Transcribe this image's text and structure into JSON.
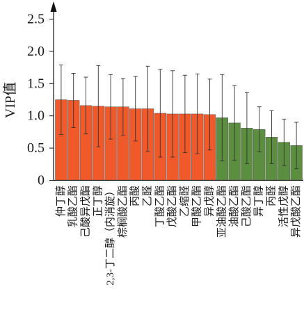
{
  "chart_data": {
    "type": "bar",
    "title": "",
    "xlabel": "",
    "ylabel": "VIP值",
    "ylim": [
      0,
      2.5
    ],
    "yticks": [
      "0",
      "0.5",
      "1.0",
      "1.5",
      "2.0",
      "2.5"
    ],
    "grid": false,
    "legend": false,
    "categories": [
      "仲丁醇",
      "乳酸乙酯",
      "己酸异戊酯",
      "正丁醇",
      "2,3-丁二醇（内消旋）",
      "棕榈酸乙酯",
      "丙酸",
      "乙醛",
      "丁酸乙酯",
      "戊酸乙酯",
      "乙缩醛",
      "甲酸乙酯",
      "异戊醇",
      "亚油酸乙酯",
      "油酸乙酯",
      "己酸乙酯",
      "异丁醇",
      "丙醛",
      "活性戊醇",
      "异戊酸乙酯"
    ],
    "values": [
      1.25,
      1.24,
      1.16,
      1.15,
      1.14,
      1.14,
      1.11,
      1.11,
      1.04,
      1.03,
      1.03,
      1.03,
      1.02,
      0.97,
      0.89,
      0.81,
      0.79,
      0.67,
      0.59,
      0.54
    ],
    "errors": [
      0.54,
      0.42,
      0.44,
      0.63,
      0.5,
      0.44,
      0.5,
      0.66,
      0.68,
      0.67,
      0.6,
      0.62,
      0.55,
      0.67,
      0.58,
      0.55,
      0.35,
      0.41,
      0.36,
      0.36
    ],
    "bar_colors": [
      "#F0592A",
      "#F0592A",
      "#F0592A",
      "#F0592A",
      "#F0592A",
      "#F0592A",
      "#F0592A",
      "#F0592A",
      "#F0592A",
      "#F0592A",
      "#F0592A",
      "#F0592A",
      "#F0592A",
      "#5C8E3F",
      "#5C8E3F",
      "#5C8E3F",
      "#5C8E3F",
      "#5C8E3F",
      "#5C8E3F",
      "#5C8E3F"
    ]
  }
}
